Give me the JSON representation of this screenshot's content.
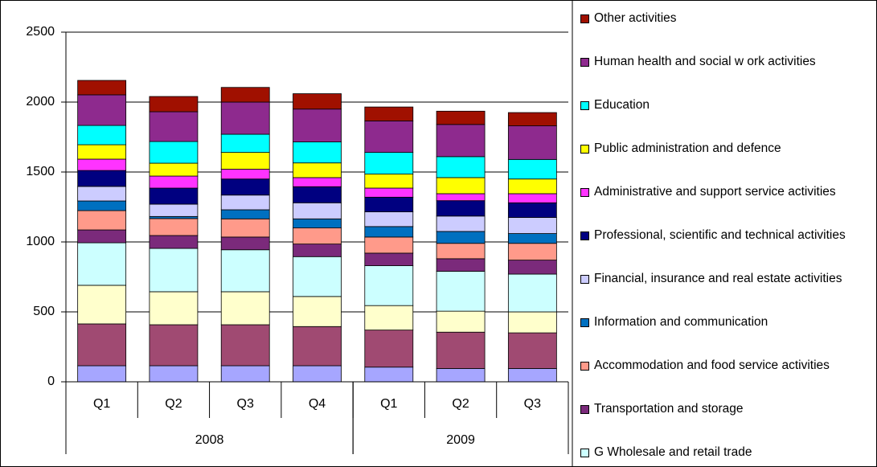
{
  "chart_data": {
    "type": "stacked_bar",
    "groups": [
      {
        "label": "2008",
        "categories": [
          "Q1",
          "Q2",
          "Q3",
          "Q4"
        ]
      },
      {
        "label": "2009",
        "categories": [
          "Q1",
          "Q2",
          "Q3"
        ]
      }
    ],
    "ylim": [
      0,
      2500
    ],
    "yticks": [
      0,
      500,
      1000,
      1500,
      2000,
      2500
    ],
    "grid": true,
    "series": [
      {
        "color": "#a6a6ff",
        "values": [
          115,
          115,
          115,
          115,
          105,
          95,
          95
        ]
      },
      {
        "color": "#a04a72",
        "values": [
          299,
          293,
          293,
          280,
          265,
          260,
          255
        ]
      },
      {
        "color": "#ffffcc",
        "values": [
          276,
          236,
          236,
          215,
          175,
          150,
          150
        ]
      },
      {
        "name": "G Wholesale and retail trade",
        "color": "#ccffff",
        "values": [
          304,
          310,
          300,
          285,
          285,
          285,
          270
        ]
      },
      {
        "name": "Transportation and storage",
        "color": "#7b2a7b",
        "values": [
          92,
          92,
          91,
          90,
          90,
          90,
          100
        ]
      },
      {
        "name": "Accommodation and food service activities",
        "color": "#ff9a8a",
        "values": [
          138,
          121,
          130,
          115,
          115,
          110,
          120
        ]
      },
      {
        "name": "Information and communication",
        "color": "#0070c0",
        "values": [
          69,
          15,
          65,
          65,
          75,
          85,
          70
        ]
      },
      {
        "name": "Financial, insurance and real estate activities",
        "color": "#ccccff",
        "values": [
          104,
          88,
          105,
          115,
          105,
          110,
          115
        ]
      },
      {
        "name": "Professional, scientific and technical activities",
        "color": "#000080",
        "values": [
          114,
          115,
          115,
          115,
          105,
          110,
          105
        ]
      },
      {
        "name": "Administrative and support service activities",
        "color": "#ff33ff",
        "values": [
          81,
          86,
          70,
          65,
          65,
          50,
          65
        ]
      },
      {
        "name": "Public administration and defence",
        "color": "#ffff00",
        "values": [
          103,
          92,
          120,
          105,
          100,
          115,
          105
        ]
      },
      {
        "name": "Education",
        "color": "#00ffff",
        "values": [
          138,
          155,
          130,
          150,
          155,
          150,
          140
        ]
      },
      {
        "name": "Human health and social w ork activities",
        "color": "#8e2a8e",
        "values": [
          219,
          213,
          230,
          235,
          225,
          230,
          240
        ]
      },
      {
        "name": "Other activities",
        "color": "#a01000",
        "values": [
          103,
          109,
          105,
          110,
          100,
          95,
          95
        ]
      }
    ]
  }
}
